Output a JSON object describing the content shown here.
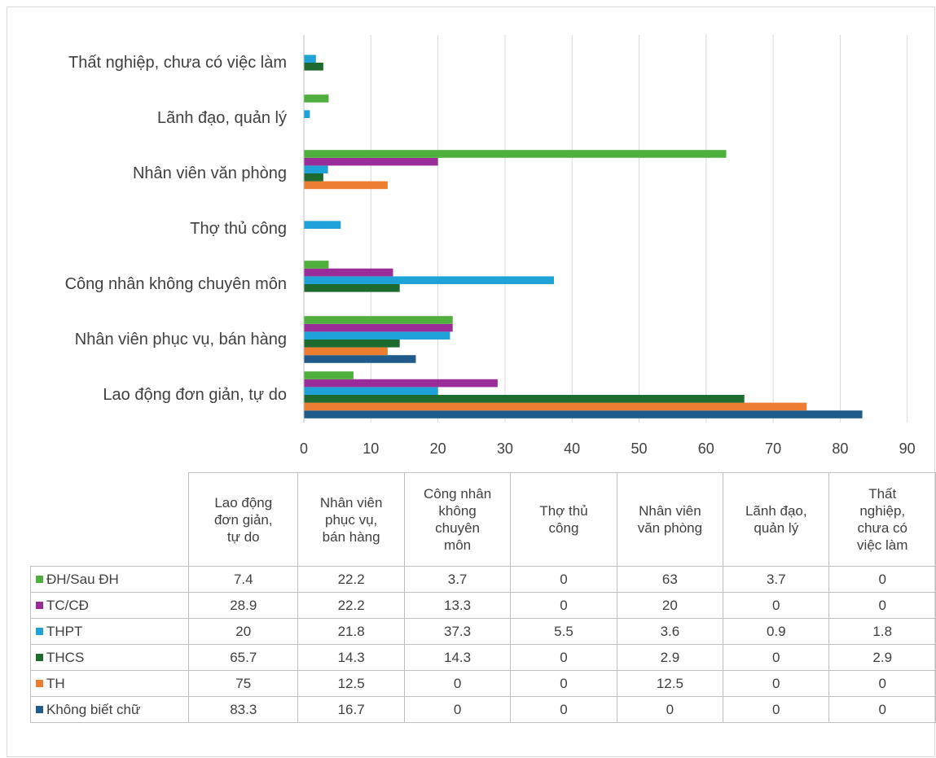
{
  "chart_data": {
    "type": "bar",
    "orientation": "horizontal",
    "categories": [
      "Lao động đơn giản, tự do",
      "Nhân viên phục vụ, bán hàng",
      "Công nhân không chuyên môn",
      "Thợ thủ công",
      "Nhân viên văn phòng",
      "Lãnh đạo, quản lý",
      "Thất nghiệp, chưa có việc làm"
    ],
    "series": [
      {
        "name": "Không biết chữ",
        "color": "#1f5c8b",
        "values": [
          83.3,
          16.7,
          0,
          0,
          0,
          0,
          0
        ]
      },
      {
        "name": "TH",
        "color": "#ed7d31",
        "values": [
          75,
          12.5,
          0,
          0,
          12.5,
          0,
          0
        ]
      },
      {
        "name": "THCS",
        "color": "#1e6b2f",
        "values": [
          65.7,
          14.3,
          14.3,
          0,
          2.9,
          0,
          2.9
        ]
      },
      {
        "name": "THPT",
        "color": "#1fa2d8",
        "values": [
          20,
          21.8,
          37.3,
          5.5,
          3.6,
          0.9,
          1.8
        ]
      },
      {
        "name": "TC/CĐ",
        "color": "#9b2d9b",
        "values": [
          28.9,
          22.2,
          13.3,
          0,
          20,
          0,
          0
        ]
      },
      {
        "name": "ĐH/Sau ĐH",
        "color": "#4faf3c",
        "values": [
          7.4,
          22.2,
          3.7,
          0,
          63,
          3.7,
          0
        ]
      }
    ],
    "xlim": [
      0,
      90
    ],
    "xticks": [
      0,
      10,
      20,
      30,
      40,
      50,
      60,
      70,
      80,
      90
    ],
    "grid": "vertical",
    "legend": "data table below chart",
    "table": {
      "headers": [
        [
          "Lao động",
          "đơn giản,",
          "tự do"
        ],
        [
          "Nhân viên",
          "phục vụ,",
          "bán hàng"
        ],
        [
          "Công nhân",
          "không",
          "chuyên",
          "môn"
        ],
        [
          "Thợ thủ",
          "công"
        ],
        [
          "Nhân viên",
          "văn phòng"
        ],
        [
          "Lãnh đạo,",
          "quản lý"
        ],
        [
          "Thất",
          "nghiệp,",
          "chưa có",
          "việc làm"
        ]
      ],
      "row_order": [
        "ĐH/Sau ĐH",
        "TC/CĐ",
        "THPT",
        "THCS",
        "TH",
        "Không biết chữ"
      ]
    }
  }
}
